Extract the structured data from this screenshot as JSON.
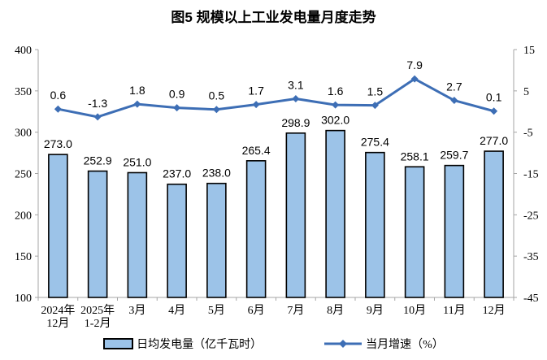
{
  "title": "图5 规模以上工业发电量月度走势",
  "chart_data": {
    "type": "bar+line combo",
    "title": "图5 规模以上工业发电量月度走势",
    "categories": [
      "2024年\n12月",
      "2025年\n1-2月",
      "3月",
      "4月",
      "5月",
      "6月",
      "7月",
      "8月",
      "9月",
      "10月",
      "11月",
      "12月"
    ],
    "series": [
      {
        "name": "日均发电量（亿千瓦时）",
        "type": "bar",
        "axis": "left",
        "values": [
          273.0,
          252.9,
          251.0,
          237.0,
          238.0,
          265.4,
          298.9,
          302.0,
          275.4,
          258.1,
          259.7,
          277.0
        ]
      },
      {
        "name": "当月增速（%）",
        "type": "line",
        "axis": "right",
        "values": [
          0.6,
          -1.3,
          1.8,
          0.9,
          0.5,
          1.7,
          3.1,
          1.6,
          1.5,
          7.9,
          2.7,
          0.1
        ]
      }
    ],
    "left_axis": {
      "min": 100,
      "max": 400,
      "ticks": [
        100,
        150,
        200,
        250,
        300,
        350,
        400
      ]
    },
    "right_axis": {
      "min": -45,
      "max": 15,
      "ticks": [
        -45,
        -35,
        -25,
        -15,
        -5,
        5,
        15
      ]
    },
    "grid": false,
    "legend_position": "bottom",
    "data_labels": true,
    "colors": {
      "bar_fill": "#9CC3E8",
      "bar_border": "#000000",
      "line": "#3D6EB5",
      "axis": "#A6A6A6",
      "text": "#000000"
    }
  },
  "legend": {
    "bar_label": "日均发电量（亿千瓦时）",
    "line_label": "当月增速（%）"
  }
}
